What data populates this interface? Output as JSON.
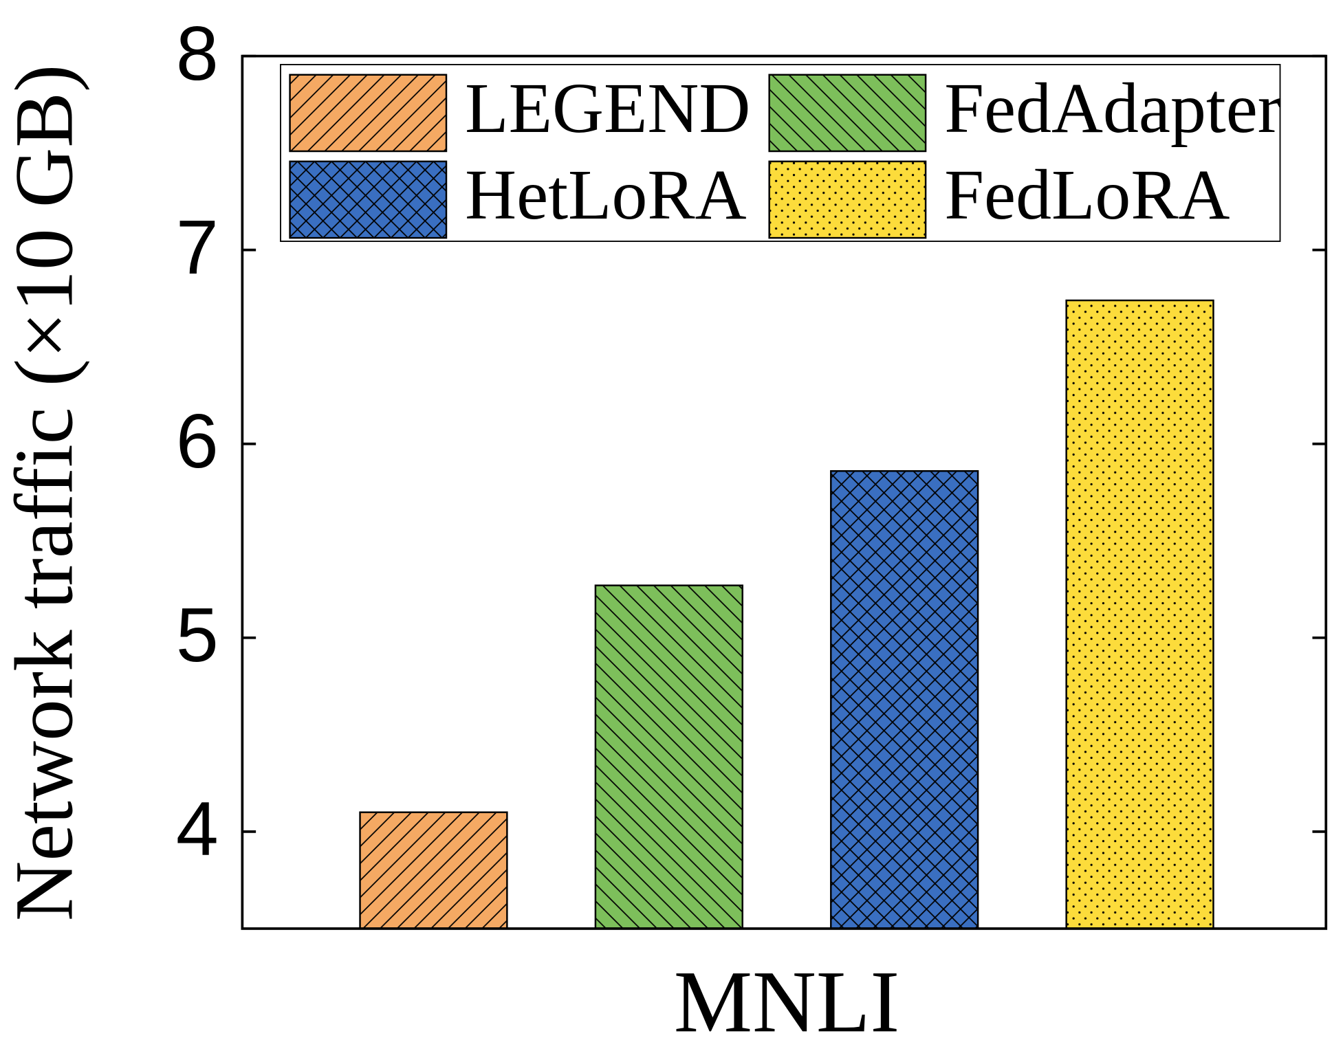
{
  "chart_data": {
    "type": "bar",
    "categories": [
      "MNLI"
    ],
    "series": [
      {
        "name": "LEGEND",
        "color": "#f5a963",
        "hatch": "/",
        "values": [
          4.1
        ]
      },
      {
        "name": "FedAdapter",
        "color": "#7dbf5b",
        "hatch": "\\",
        "values": [
          5.27
        ]
      },
      {
        "name": "HetLoRA",
        "color": "#3a6fc1",
        "hatch": "x",
        "values": [
          5.86
        ]
      },
      {
        "name": "FedLoRA",
        "color": "#fcdc3b",
        "hatch": ".",
        "values": [
          6.74
        ]
      }
    ],
    "y_label": "Network traffic (×10 GB)",
    "ylim": [
      3.5,
      8
    ],
    "yticks": [
      4,
      5,
      6,
      7,
      8
    ],
    "legend": "top"
  }
}
